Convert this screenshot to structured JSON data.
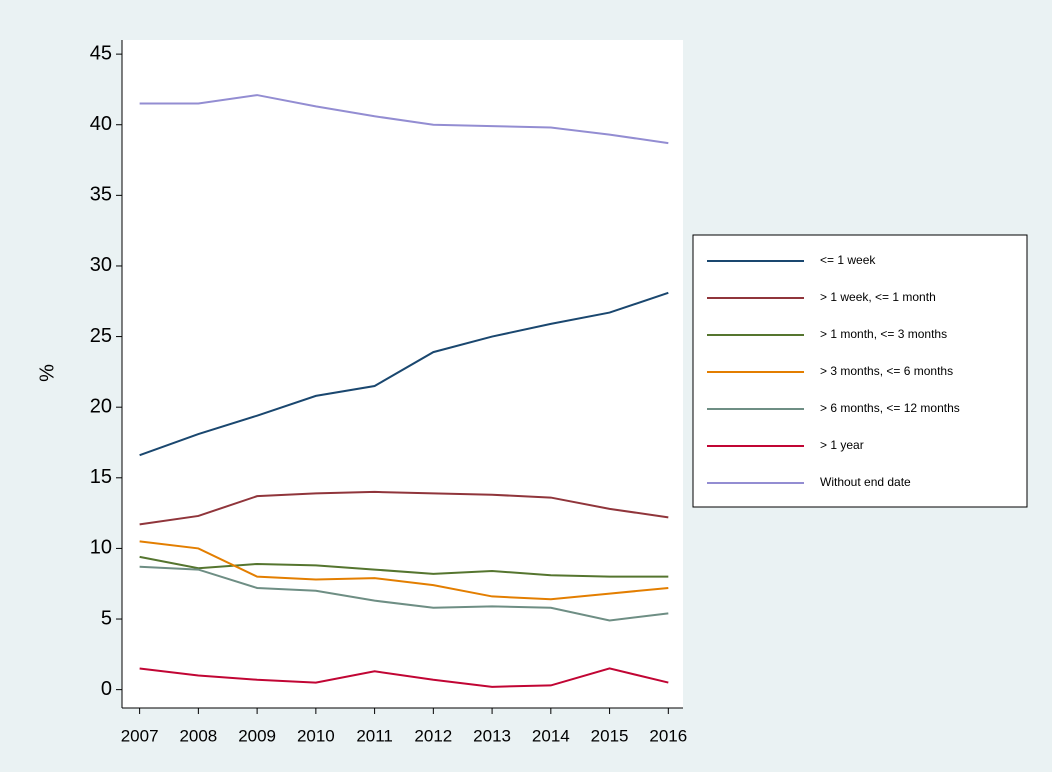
{
  "chart_data": {
    "type": "line",
    "y_label": "%",
    "x": [
      2007,
      2008,
      2009,
      2010,
      2011,
      2012,
      2013,
      2014,
      2015,
      2016
    ],
    "xlim": [
      2006.7,
      2016.25
    ],
    "xticks": [
      2007,
      2008,
      2009,
      2010,
      2011,
      2012,
      2013,
      2014,
      2015,
      2016
    ],
    "ylim": [
      -1.3,
      46
    ],
    "yticks": [
      0,
      5,
      10,
      15,
      20,
      25,
      30,
      35,
      40,
      45
    ],
    "grid": false,
    "legend": "right",
    "series": [
      {
        "name": "<= 1 week",
        "color": "#1a476f",
        "values": [
          16.6,
          18.1,
          19.4,
          20.8,
          21.5,
          23.9,
          25.0,
          25.9,
          26.7,
          28.1
        ]
      },
      {
        "name": "> 1 week, <= 1 month",
        "color": "#90353b",
        "values": [
          11.7,
          12.3,
          13.7,
          13.9,
          14.0,
          13.9,
          13.8,
          13.6,
          12.8,
          12.2
        ]
      },
      {
        "name": "> 1 month, <= 3 months",
        "color": "#55752f",
        "values": [
          9.4,
          8.6,
          8.9,
          8.8,
          8.5,
          8.2,
          8.4,
          8.1,
          8.0,
          8.0
        ]
      },
      {
        "name": "> 3 months, <= 6 months",
        "color": "#e37e00",
        "values": [
          10.5,
          10.0,
          8.0,
          7.8,
          7.9,
          7.4,
          6.6,
          6.4,
          6.8,
          7.2
        ]
      },
      {
        "name": "> 6 months, <= 12 months",
        "color": "#6e8e84",
        "values": [
          8.7,
          8.5,
          7.2,
          7.0,
          6.3,
          5.8,
          5.9,
          5.8,
          4.9,
          5.4
        ]
      },
      {
        "name": "> 1 year",
        "color": "#c10534",
        "values": [
          1.5,
          1.0,
          0.7,
          0.5,
          1.3,
          0.7,
          0.2,
          0.3,
          1.5,
          0.5
        ]
      },
      {
        "name": "Without end date",
        "color": "#938dd2",
        "values": [
          41.5,
          41.5,
          42.1,
          41.3,
          40.6,
          40.0,
          39.9,
          39.8,
          39.3,
          38.7
        ]
      }
    ]
  }
}
